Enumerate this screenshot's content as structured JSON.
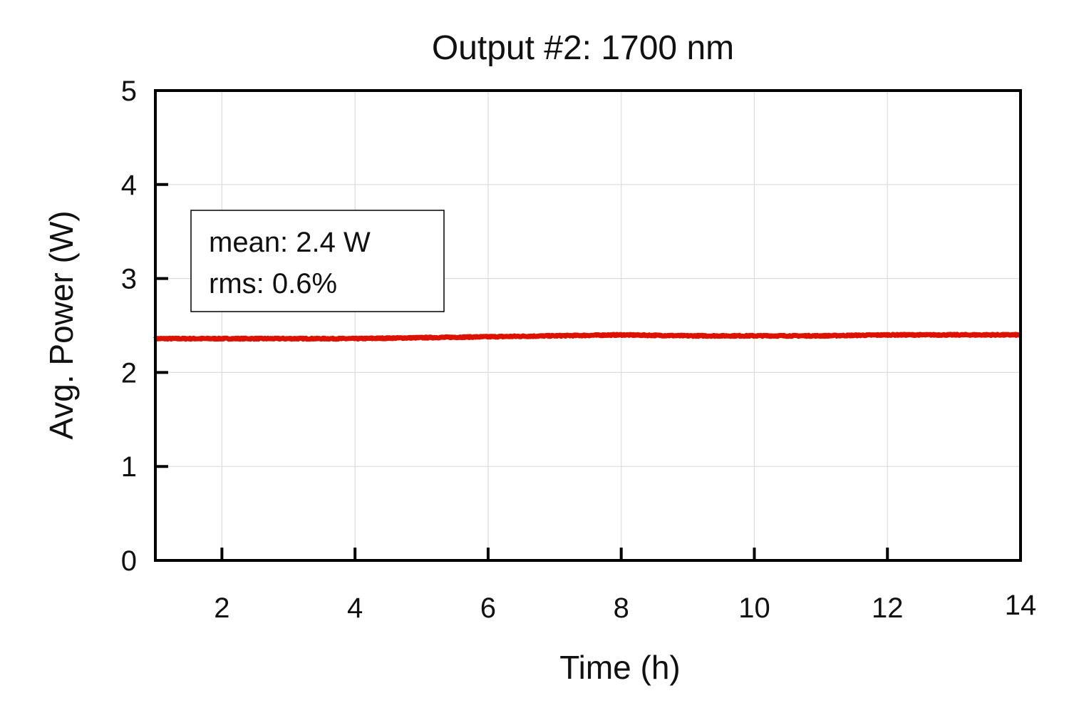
{
  "chart_data": {
    "type": "line",
    "title": "Output #2: 1700 nm",
    "xlabel": "Time (h)",
    "ylabel": "Avg. Power (W)",
    "xlim": [
      1,
      14
    ],
    "ylim": [
      0,
      5
    ],
    "xticks": [
      2,
      4,
      6,
      8,
      10,
      12,
      14
    ],
    "yticks": [
      0,
      1,
      2,
      3,
      4,
      5
    ],
    "grid": true,
    "series": [
      {
        "name": "Output #2",
        "color": "#dd1100",
        "x": [
          1,
          2,
          3,
          4,
          5,
          6,
          7,
          8,
          9,
          10,
          11,
          12,
          13,
          14
        ],
        "y": [
          2.36,
          2.36,
          2.36,
          2.36,
          2.37,
          2.38,
          2.39,
          2.4,
          2.39,
          2.39,
          2.39,
          2.4,
          2.4,
          2.4
        ]
      }
    ],
    "annotation": {
      "lines": [
        "mean: 2.4 W",
        "rms: 0.6%"
      ],
      "placement": "upper-left"
    }
  }
}
